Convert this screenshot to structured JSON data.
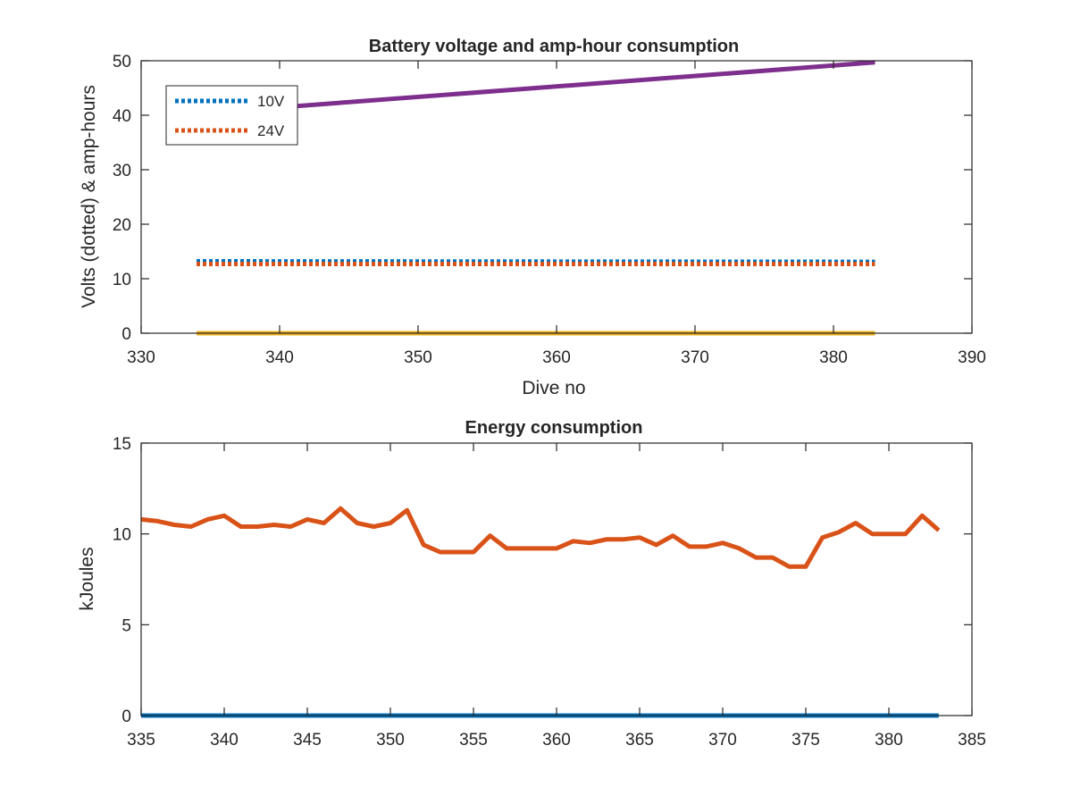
{
  "colors": {
    "blue": "#0072BD",
    "orange": "#D95319",
    "yellow": "#EDB120",
    "purple": "#7E2F8E",
    "axis": "#262626"
  },
  "chart_data": [
    {
      "type": "line",
      "title": "Battery voltage and amp-hour consumption",
      "xlabel": "Dive no",
      "ylabel": "Volts (dotted) & amp-hours",
      "xlim": [
        330,
        390
      ],
      "ylim": [
        0,
        50
      ],
      "xticks": [
        330,
        340,
        350,
        360,
        370,
        380,
        390
      ],
      "yticks": [
        0,
        10,
        20,
        30,
        40,
        50
      ],
      "grid": false,
      "legend": {
        "position": "top-left",
        "entries": [
          "10V",
          "24V"
        ]
      },
      "series": [
        {
          "name": "10V",
          "style": "dotted",
          "color": "#0072BD",
          "x": [
            334,
            383
          ],
          "y": [
            13.2,
            13.1
          ]
        },
        {
          "name": "24V",
          "style": "dotted",
          "color": "#D95319",
          "x": [
            334,
            383
          ],
          "y": [
            12.7,
            12.7
          ]
        },
        {
          "style": "solid",
          "color": "#EDB120",
          "x": [
            334,
            383
          ],
          "y": [
            0,
            0
          ]
        },
        {
          "style": "solid",
          "color": "#7E2F8E",
          "x": [
            334,
            383
          ],
          "y": [
            40.3,
            49.7
          ]
        }
      ]
    },
    {
      "type": "line",
      "title": "Energy consumption",
      "xlabel": "",
      "ylabel": "kJoules",
      "xlim": [
        335,
        385
      ],
      "ylim": [
        0,
        15
      ],
      "xticks": [
        335,
        340,
        345,
        350,
        355,
        360,
        365,
        370,
        375,
        380,
        385
      ],
      "yticks": [
        0,
        5,
        10,
        15
      ],
      "grid": false,
      "series": [
        {
          "style": "solid",
          "color": "#D95319",
          "x": [
            335,
            336,
            337,
            338,
            339,
            340,
            341,
            342,
            343,
            344,
            345,
            346,
            347,
            348,
            349,
            350,
            351,
            352,
            353,
            354,
            355,
            356,
            357,
            358,
            359,
            360,
            361,
            362,
            363,
            364,
            365,
            366,
            367,
            368,
            369,
            370,
            371,
            372,
            373,
            374,
            375,
            376,
            377,
            378,
            379,
            380,
            381,
            382,
            383
          ],
          "y": [
            10.8,
            10.7,
            10.5,
            10.4,
            10.8,
            11.0,
            10.4,
            10.4,
            10.5,
            10.4,
            10.8,
            10.6,
            11.4,
            10.6,
            10.4,
            10.6,
            11.3,
            9.4,
            9.0,
            9.0,
            9.0,
            9.9,
            9.2,
            9.2,
            9.2,
            9.2,
            9.6,
            9.5,
            9.7,
            9.7,
            9.8,
            9.4,
            9.9,
            9.3,
            9.3,
            9.5,
            9.2,
            8.7,
            8.7,
            8.2,
            8.2,
            9.8,
            10.1,
            10.6,
            10.0,
            10.0,
            10.0,
            11.0,
            10.2
          ]
        },
        {
          "style": "solid",
          "color": "#0072BD",
          "x": [
            335,
            383
          ],
          "y": [
            0,
            0
          ]
        }
      ]
    }
  ]
}
